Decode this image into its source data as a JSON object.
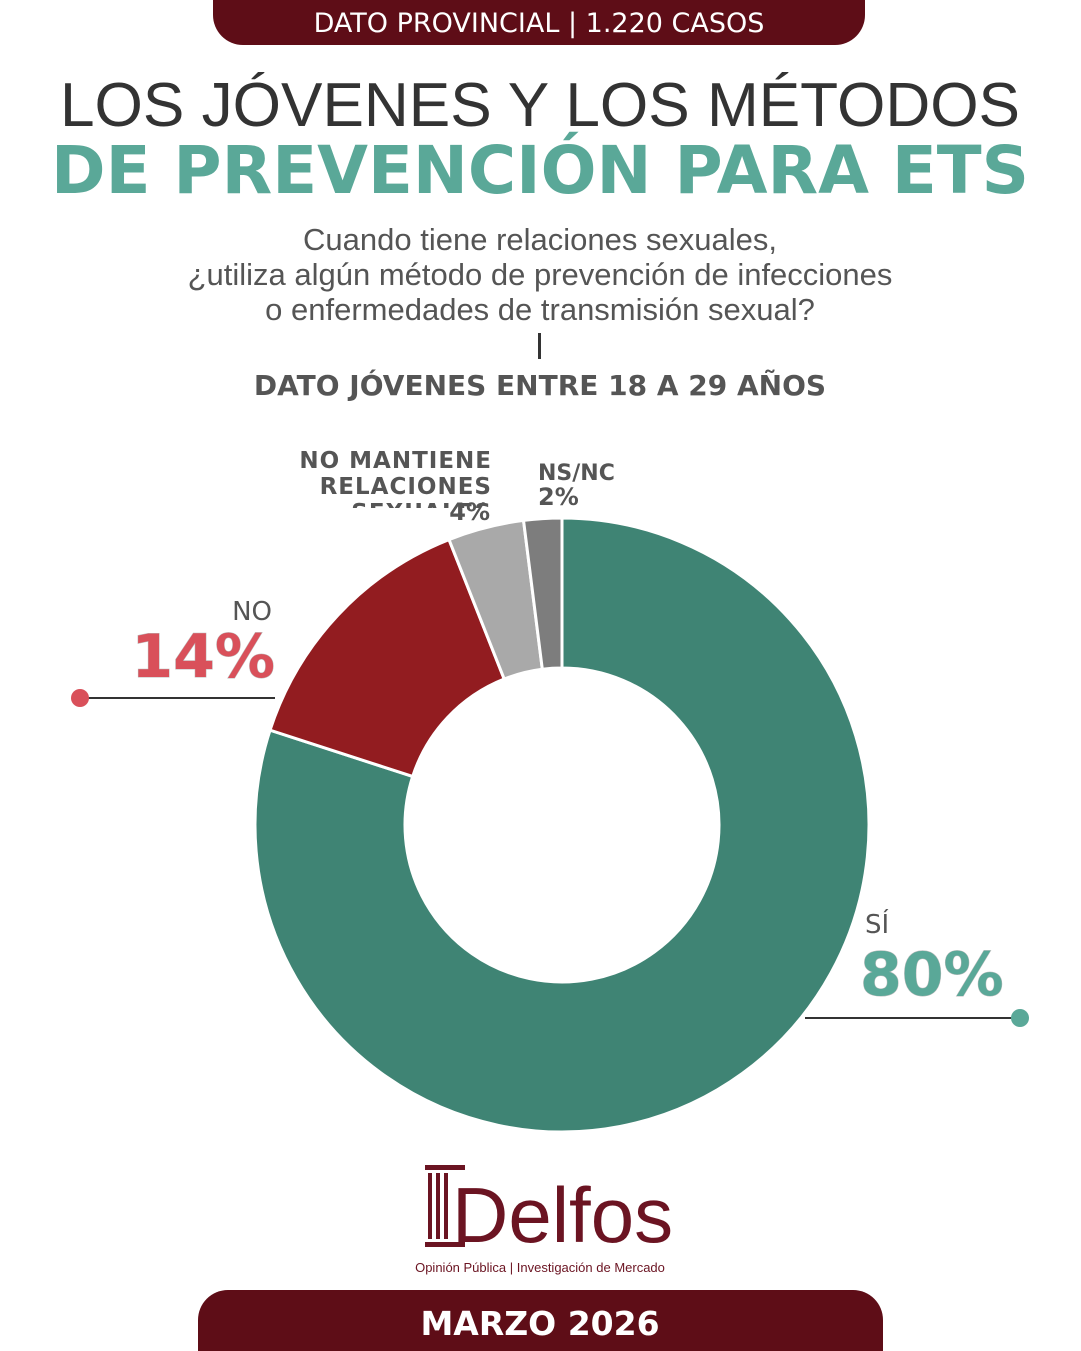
{
  "header": "DATO PROVINCIAL | 1.220 CASOS",
  "title": [
    "LOS JÓVENES Y LOS MÉTODOS",
    "DE PREVENCIÓN PARA ETS"
  ],
  "question": [
    "Cuando tiene relaciones sexuales,",
    "¿utiliza algún método de prevención de infecciones",
    "o enfermedades de transmisión sexual?"
  ],
  "subtitle": "DATO JÓVENES ENTRE 18 A 29 AÑOS",
  "logo": "Delfos",
  "tagline": "Opinión Pública | Investigación de Mercado",
  "footer": "MARZO 2026",
  "chart_data": {
    "type": "pie",
    "categories": [
      "SÍ",
      "NO",
      "NO MANTIENE RELACIONES SEXUALES",
      "NS/NC"
    ],
    "values": [
      80,
      14,
      4,
      2
    ],
    "value_labels": [
      "80%",
      "14%",
      "4%",
      "2%"
    ],
    "colors": [
      "#3f8474",
      "#921c20",
      "#a9a9a9",
      "#7d7d7d"
    ]
  }
}
